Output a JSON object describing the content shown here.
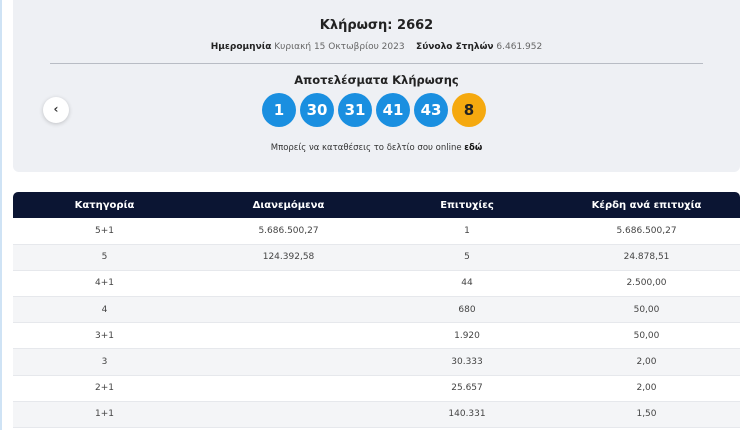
{
  "draw": {
    "title": "Κλήρωση: 2662",
    "date_label": "Ημερομηνία",
    "date": "Κυριακή 15 Οκτωβρίου 2023",
    "columns_label": "Σύνολο Στηλών",
    "columns": "6.461.952"
  },
  "results": {
    "title": "Αποτελέσματα Κλήρωσης",
    "numbers": [
      "1",
      "30",
      "31",
      "41",
      "43"
    ],
    "bonus": "8",
    "colors": {
      "main": "#1a8fe0",
      "bonus": "#f5a90f"
    }
  },
  "online": {
    "text": "Μπορείς να καταθέσεις το δελτίο σου online",
    "link": "εδώ"
  },
  "prev_icon": "‹",
  "table": {
    "headers": [
      "Κατηγορία",
      "Διανεμόμενα",
      "Επιτυχίες",
      "Κέρδη ανά επιτυχία"
    ],
    "rows": [
      [
        "5+1",
        "5.686.500,27",
        "1",
        "5.686.500,27"
      ],
      [
        "5",
        "124.392,58",
        "5",
        "24.878,51"
      ],
      [
        "4+1",
        "",
        "44",
        "2.500,00"
      ],
      [
        "4",
        "",
        "680",
        "50,00"
      ],
      [
        "3+1",
        "",
        "1.920",
        "50,00"
      ],
      [
        "3",
        "",
        "30.333",
        "2,00"
      ],
      [
        "2+1",
        "",
        "25.657",
        "2,00"
      ],
      [
        "1+1",
        "",
        "140.331",
        "1,50"
      ]
    ]
  }
}
